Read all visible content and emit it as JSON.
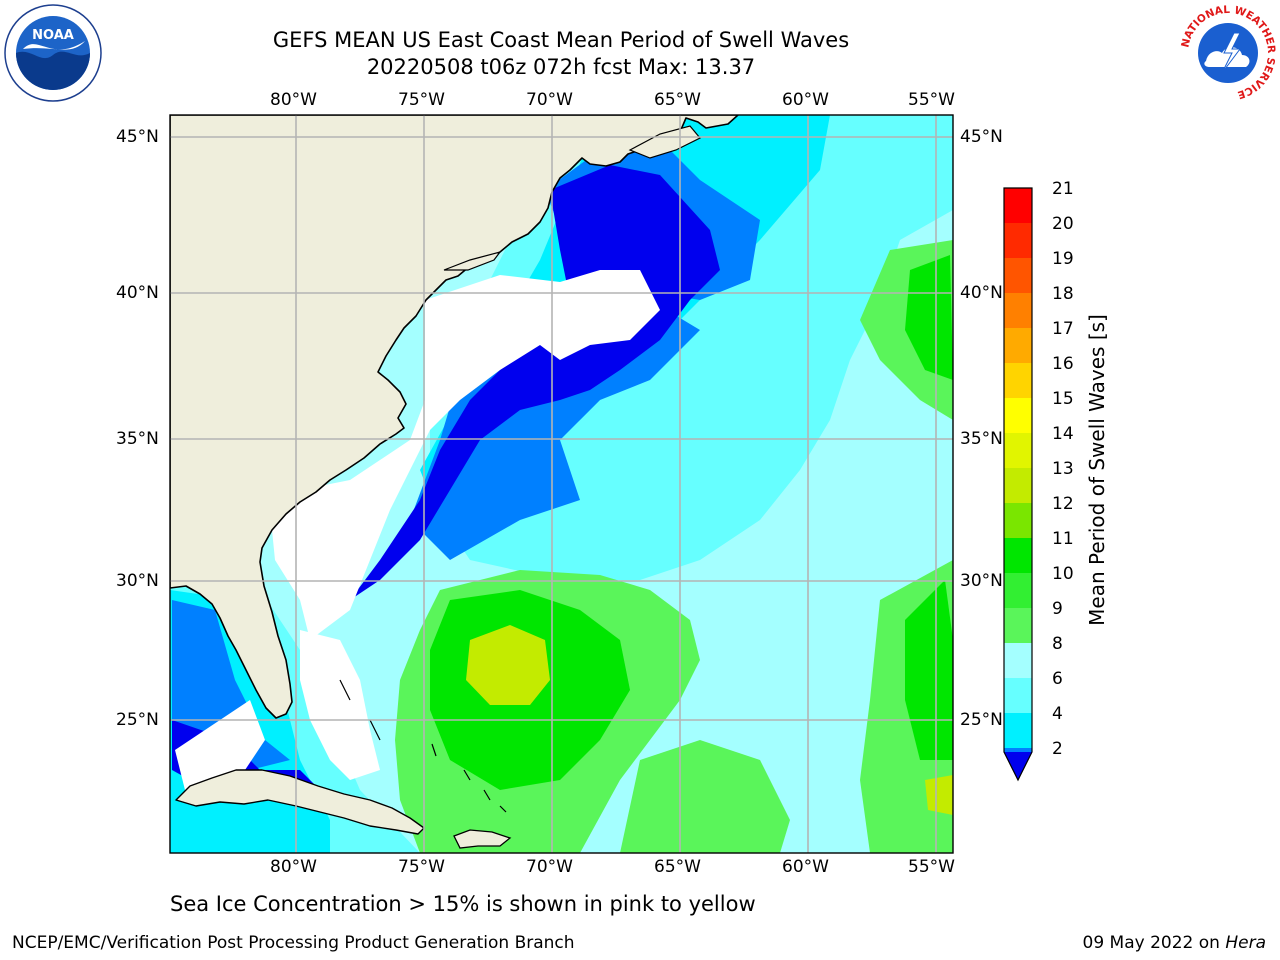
{
  "title": {
    "line1": "GEFS MEAN US East Coast Mean Period of Swell Waves",
    "line2": "20220508 t06z 072h fcst   Max: 13.37"
  },
  "map": {
    "lon_labels": [
      "80°W",
      "75°W",
      "70°W",
      "65°W",
      "60°W",
      "55°W"
    ],
    "lat_labels": [
      "45°N",
      "40°N",
      "35°N",
      "30°N",
      "25°N"
    ]
  },
  "colorbar": {
    "label": "Mean Period of Swell Waves [s]",
    "ticks": [
      "21",
      "20",
      "19",
      "18",
      "17",
      "16",
      "15",
      "14",
      "13",
      "12",
      "11",
      "10",
      "9",
      "8",
      "6",
      "4",
      "2"
    ],
    "colors": [
      "#ff0000",
      "#ff2a00",
      "#ff5500",
      "#ff8000",
      "#ffaa00",
      "#ffd400",
      "#ffff00",
      "#e1f500",
      "#c3eb00",
      "#7ae600",
      "#00e600",
      "#32ef32",
      "#5af55a",
      "#a4ffff",
      "#66ffff",
      "#00f0ff",
      "#0080ff"
    ],
    "under_color": "#0000ee"
  },
  "colors": {
    "land": "#efeedc",
    "lightcyan": "#a4ffff",
    "cyan": "#66ffff",
    "aqua": "#00f0ff",
    "blue": "#0080ff",
    "deepblue": "#0000ee",
    "green": "#5af55a",
    "brightgreen": "#00e600",
    "yellowgreen": "#c3eb00"
  },
  "footer": {
    "note": "Sea Ice Concentration > 15% is shown in pink to yellow",
    "left": "NCEP/EMC/Verification Post Processing Product Generation Branch",
    "right_date": "09 May 2022 on",
    "right_host": "Hera"
  },
  "logos": {
    "noaa": "NOAA",
    "nws": "NATIONAL WEATHER SERVICE"
  }
}
